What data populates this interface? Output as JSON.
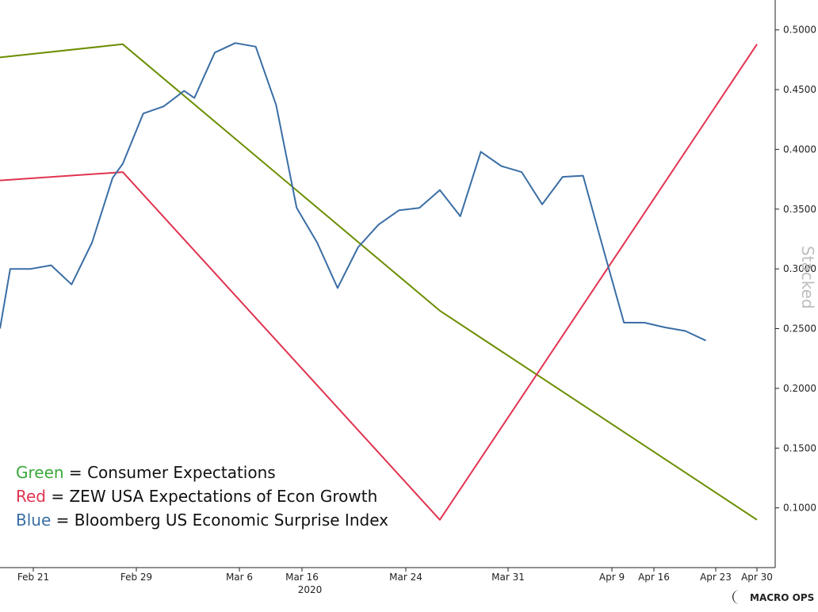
{
  "chart_data": {
    "type": "line",
    "x_ticks": [
      "Feb 21",
      "Feb 29",
      "Mar 6",
      "Mar 16",
      "Mar 24",
      "Mar 31",
      "Apr 9",
      "Apr 16",
      "Apr 23",
      "Apr 30"
    ],
    "year_label": "2020",
    "y_ticks": [
      "0.1000",
      "0.1500",
      "0.2000",
      "0.2500",
      "0.3000",
      "0.3500",
      "0.4000",
      "0.4500",
      "0.5000"
    ],
    "ylim": [
      0.05,
      0.525
    ],
    "y_scale": "linear",
    "grid": false,
    "watermark": "Stacked",
    "series": [
      {
        "color": "#6b8e00",
        "points": [
          {
            "x": "2020-02-17",
            "y": 0.477
          },
          {
            "x": "2020-02-29",
            "y": 0.488
          },
          {
            "x": "2020-03-31",
            "y": 0.265
          },
          {
            "x": "2020-05-01",
            "y": 0.09
          }
        ]
      },
      {
        "color": "#e03450",
        "points": [
          {
            "x": "2020-02-17",
            "y": 0.374
          },
          {
            "x": "2020-02-29",
            "y": 0.381
          },
          {
            "x": "2020-03-31",
            "y": 0.09
          },
          {
            "x": "2020-05-01",
            "y": 0.488
          }
        ]
      },
      {
        "color": "#3a6ea5",
        "points": [
          {
            "x": "2020-02-17",
            "y": 0.25
          },
          {
            "x": "2020-02-18",
            "y": 0.3
          },
          {
            "x": "2020-02-20",
            "y": 0.3
          },
          {
            "x": "2020-02-22",
            "y": 0.303
          },
          {
            "x": "2020-02-24",
            "y": 0.287
          },
          {
            "x": "2020-02-26",
            "y": 0.322
          },
          {
            "x": "2020-02-28",
            "y": 0.376
          },
          {
            "x": "2020-02-29",
            "y": 0.388
          },
          {
            "x": "2020-03-02",
            "y": 0.43
          },
          {
            "x": "2020-03-04",
            "y": 0.436
          },
          {
            "x": "2020-03-06",
            "y": 0.449
          },
          {
            "x": "2020-03-07",
            "y": 0.443
          },
          {
            "x": "2020-03-09",
            "y": 0.481
          },
          {
            "x": "2020-03-11",
            "y": 0.489
          },
          {
            "x": "2020-03-13",
            "y": 0.486
          },
          {
            "x": "2020-03-15",
            "y": 0.437
          },
          {
            "x": "2020-03-17",
            "y": 0.351
          },
          {
            "x": "2020-03-19",
            "y": 0.322
          },
          {
            "x": "2020-03-21",
            "y": 0.284
          },
          {
            "x": "2020-03-23",
            "y": 0.318
          },
          {
            "x": "2020-03-25",
            "y": 0.337
          },
          {
            "x": "2020-03-27",
            "y": 0.349
          },
          {
            "x": "2020-03-29",
            "y": 0.351
          },
          {
            "x": "2020-03-31",
            "y": 0.366
          },
          {
            "x": "2020-04-02",
            "y": 0.344
          },
          {
            "x": "2020-04-04",
            "y": 0.398
          },
          {
            "x": "2020-04-06",
            "y": 0.386
          },
          {
            "x": "2020-04-08",
            "y": 0.381
          },
          {
            "x": "2020-04-10",
            "y": 0.354
          },
          {
            "x": "2020-04-12",
            "y": 0.377
          },
          {
            "x": "2020-04-14",
            "y": 0.378
          },
          {
            "x": "2020-04-16",
            "y": 0.316
          },
          {
            "x": "2020-04-18",
            "y": 0.255
          },
          {
            "x": "2020-04-20",
            "y": 0.255
          },
          {
            "x": "2020-04-22",
            "y": 0.251
          },
          {
            "x": "2020-04-24",
            "y": 0.248
          },
          {
            "x": "2020-04-26",
            "y": 0.24
          }
        ]
      }
    ],
    "legend": {
      "placement": "bottom-left",
      "entries": [
        {
          "color_word": "Green",
          "separator": " = ",
          "description": "Consumer Expectations",
          "color": "#3aa83a"
        },
        {
          "color_word": "Red",
          "separator": " = ",
          "description": "ZEW USA Expectations of Econ Growth",
          "color": "#e03450"
        },
        {
          "color_word": "Blue",
          "separator": " = ",
          "description": "Bloomberg US Economic Surprise Index",
          "color": "#3a6ea5"
        }
      ]
    }
  },
  "brand": {
    "name": "MACRO OPS",
    "icon": "crescent-logo-icon"
  }
}
